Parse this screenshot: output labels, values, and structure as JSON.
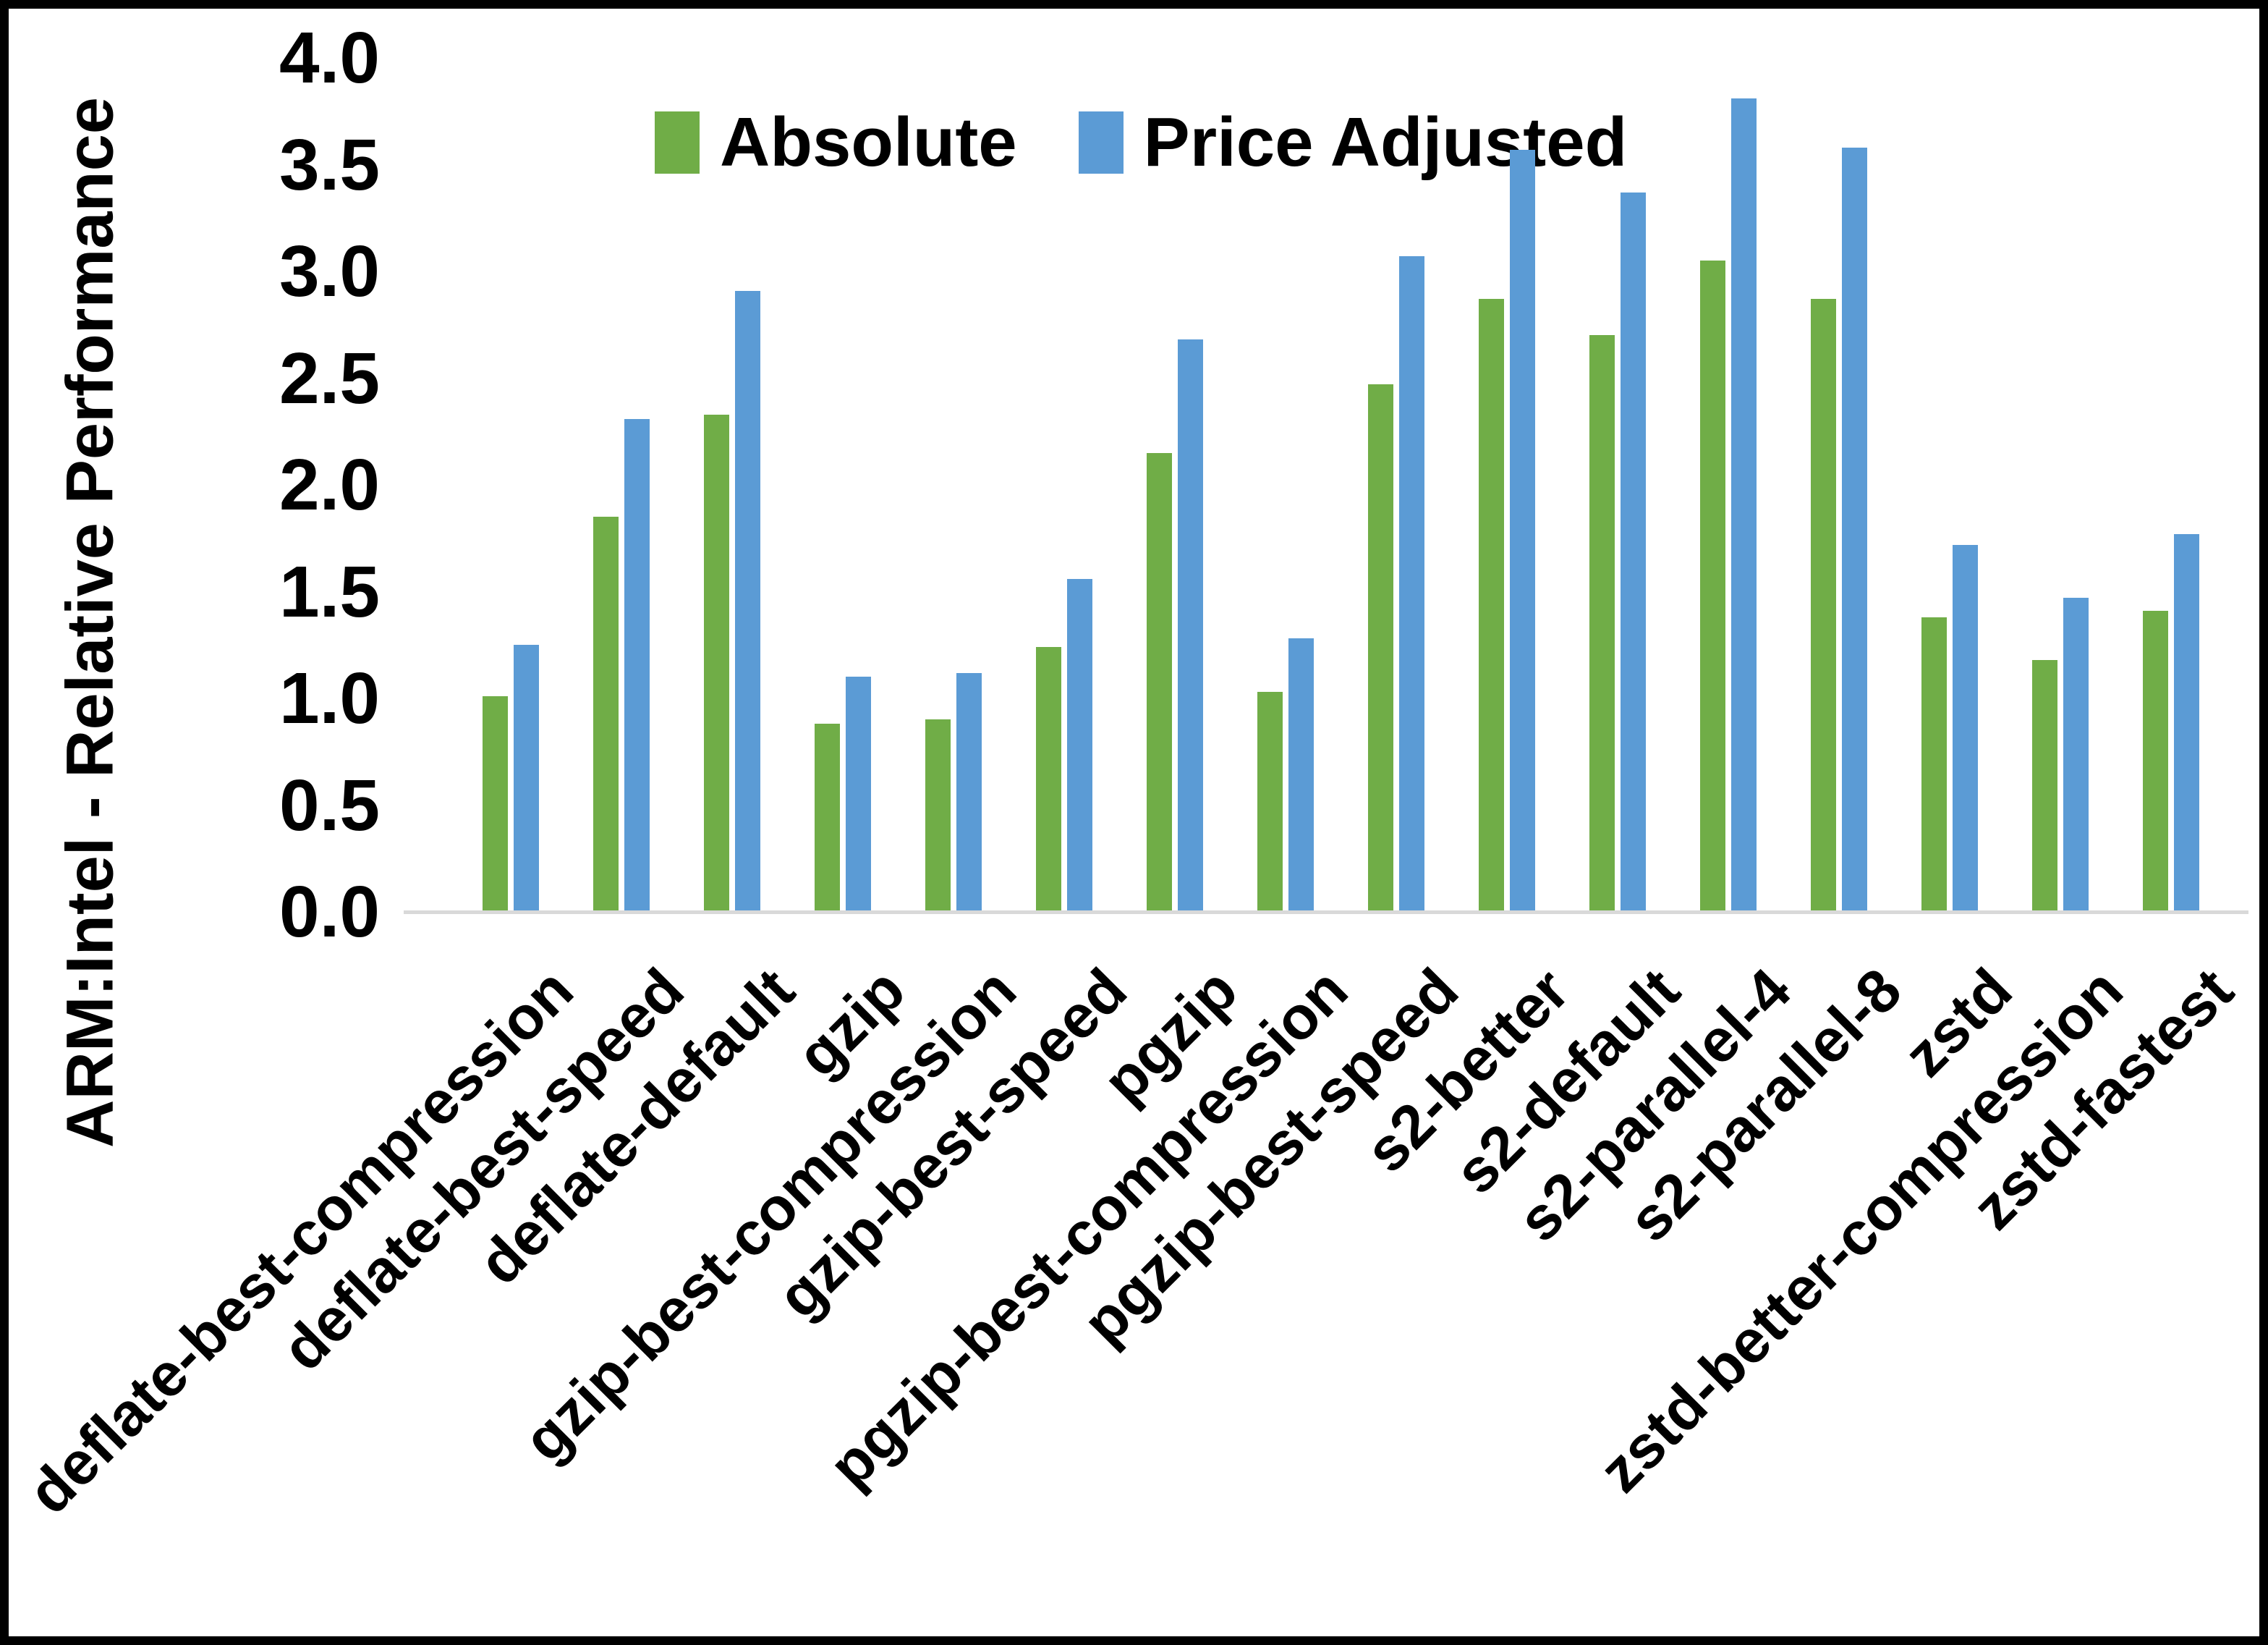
{
  "chart_data": {
    "type": "bar",
    "title": "",
    "xlabel": "",
    "ylabel": "ARM:Intel - Relative Performance",
    "ylim": [
      0.0,
      4.0
    ],
    "ytick_step": 0.5,
    "y_tick_labels": [
      "0.0",
      "0.5",
      "1.0",
      "1.5",
      "2.0",
      "2.5",
      "3.0",
      "3.5",
      "4.0"
    ],
    "grid": false,
    "legend_position": "top-center",
    "categories": [
      "deflate-best-compression",
      "deflate-best-speed",
      "deflate-default",
      "gzip",
      "gzip-best-compression",
      "gzip-best-speed",
      "pgzip",
      "pgzip-best-compression",
      "pgzip-best-speed",
      "s2-better",
      "s2-default",
      "s2-parallel-4",
      "s2-parallel-8",
      "zstd",
      "zstd-better-compression",
      "zstd-fastest"
    ],
    "series": [
      {
        "name": "Absolute",
        "color": "#70AD47",
        "values": [
          1.01,
          1.85,
          2.33,
          0.88,
          0.9,
          1.24,
          2.15,
          1.03,
          2.47,
          2.87,
          2.7,
          3.05,
          2.87,
          1.38,
          1.18,
          1.41
        ]
      },
      {
        "name": "Price Adjusted",
        "color": "#5B9BD5",
        "values": [
          1.25,
          2.31,
          2.91,
          1.1,
          1.12,
          1.56,
          2.68,
          1.28,
          3.07,
          3.57,
          3.37,
          3.81,
          3.58,
          1.72,
          1.47,
          1.77
        ]
      }
    ]
  },
  "legend": {
    "items": [
      {
        "label": "Absolute",
        "color": "#70AD47"
      },
      {
        "label": "Price Adjusted",
        "color": "#5B9BD5"
      }
    ]
  },
  "colors": {
    "axis_line": "#d9d9d9",
    "text": "#000000",
    "background": "#ffffff",
    "border": "#000000"
  }
}
